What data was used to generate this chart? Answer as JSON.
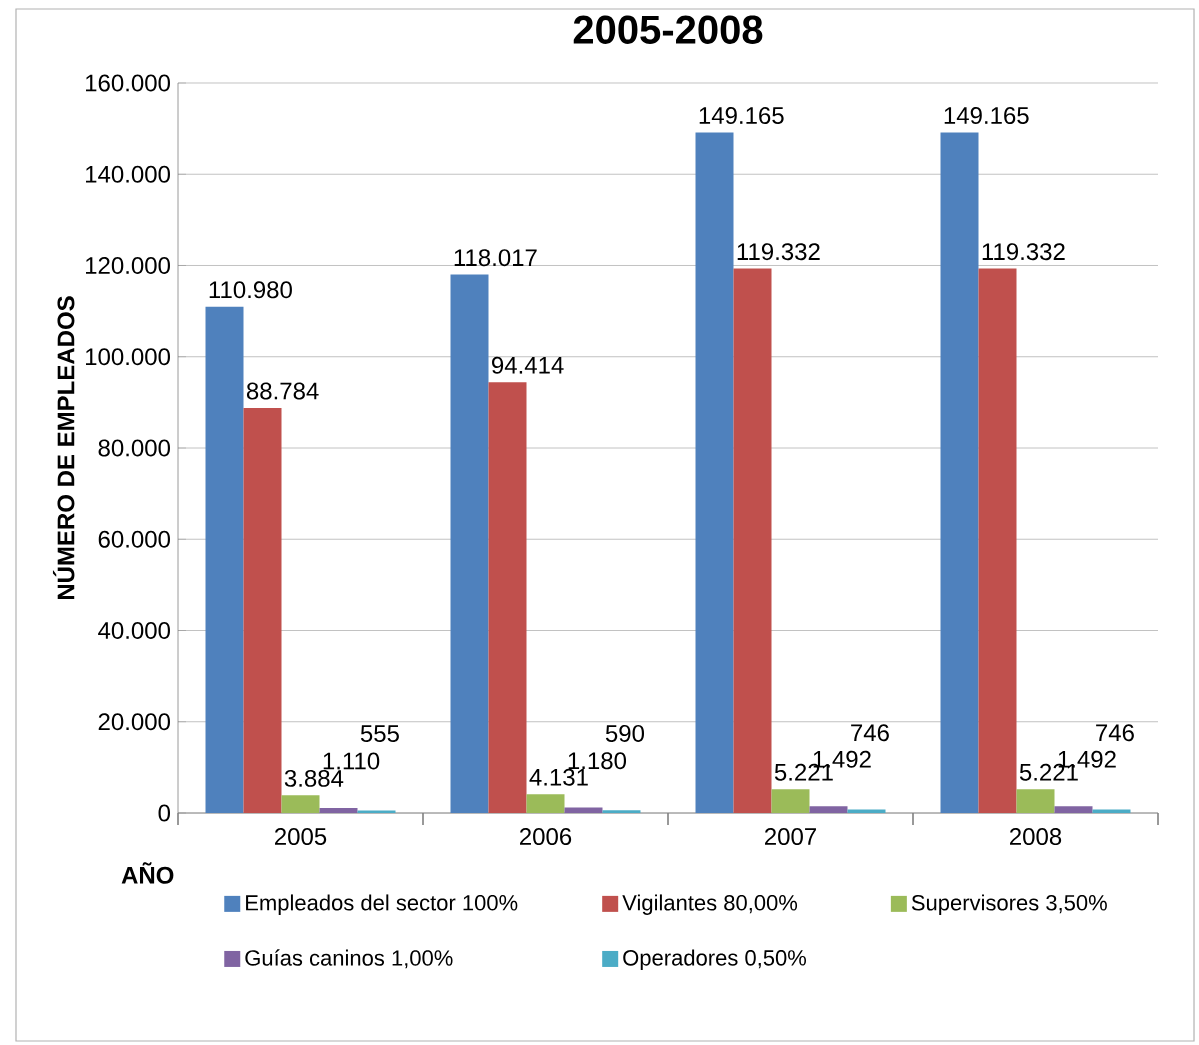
{
  "chart_data": {
    "type": "bar",
    "title": "2005-2008",
    "xlabel": "AÑO",
    "ylabel": "NÚMERO DE EMPLEADOS",
    "categories": [
      "2005",
      "2006",
      "2007",
      "2008"
    ],
    "series": [
      {
        "name": "Empleados del sector 100%",
        "color": "#4f81bd",
        "values": [
          110980,
          118017,
          149165,
          149165
        ],
        "value_labels": [
          "110.980",
          "118.017",
          "149.165",
          "149.165"
        ]
      },
      {
        "name": "Vigilantes 80,00%",
        "color": "#c0504d",
        "values": [
          88784,
          94414,
          119332,
          119332
        ],
        "value_labels": [
          "88.784",
          "94.414",
          "119.332",
          "119.332"
        ]
      },
      {
        "name": "Supervisores 3,50%",
        "color": "#9bbb59",
        "values": [
          3884,
          4131,
          5221,
          5221
        ],
        "value_labels": [
          "3.884",
          "4.131",
          "5.221",
          "5.221"
        ]
      },
      {
        "name": "Guías caninos 1,00%",
        "color": "#8064a2",
        "values": [
          1110,
          1180,
          1492,
          1492
        ],
        "value_labels": [
          "1.110",
          "1.180",
          "1.492",
          "1.492"
        ]
      },
      {
        "name": "Operadores 0,50%",
        "color": "#4bacc6",
        "values": [
          555,
          590,
          746,
          746
        ],
        "value_labels": [
          "555",
          "590",
          "746",
          "746"
        ]
      }
    ],
    "ylim": [
      0,
      160000
    ],
    "yticks": [
      0,
      {
        "value": 20000,
        "label": "20.000"
      },
      {
        "value": 40000,
        "label": "40.000"
      },
      {
        "value": 60000,
        "label": "60.000"
      },
      {
        "value": 80000,
        "label": "80.000"
      },
      {
        "value": 100000,
        "label": "100.000"
      },
      {
        "value": 120000,
        "label": "120.000"
      },
      {
        "value": 140000,
        "label": "140.000"
      },
      {
        "value": 160000,
        "label": "160.000"
      }
    ],
    "grid": "y",
    "legend": "bottom"
  }
}
